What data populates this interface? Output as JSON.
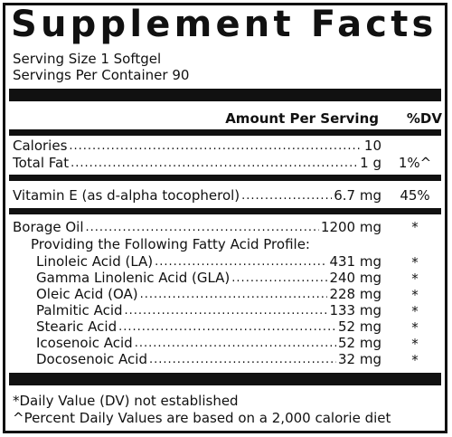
{
  "label": {
    "title": "Supplement Facts",
    "serving_size": "Serving Size 1 Softgel",
    "servings_per_container": "Servings Per Container 90",
    "amount_header": "Amount Per Serving",
    "dv_header": "%DV"
  },
  "nutrients": [
    {
      "name": "Calories",
      "amount": "10",
      "dv": ""
    },
    {
      "name": "Total Fat",
      "amount": "1 g",
      "dv": "1%^"
    },
    {
      "name": "Vitamin E (as d-alpha tocopherol)",
      "amount": "6.7 mg",
      "dv": "45%"
    },
    {
      "name": "Borage Oil",
      "amount": "1200 mg",
      "dv": "*"
    }
  ],
  "profile_heading": "Providing the Following Fatty Acid Profile:",
  "fatty_acids": [
    {
      "name": "Linoleic Acid (LA)",
      "amount": "431 mg",
      "dv": "*"
    },
    {
      "name": "Gamma Linolenic Acid (GLA)",
      "amount": "240 mg",
      "dv": "*"
    },
    {
      "name": "Oleic Acid (OA)",
      "amount": "228 mg",
      "dv": "*"
    },
    {
      "name": "Palmitic Acid",
      "amount": "133 mg",
      "dv": "*"
    },
    {
      "name": "Stearic Acid",
      "amount": "52 mg",
      "dv": "*"
    },
    {
      "name": "Icosenoic Acid",
      "amount": "52 mg",
      "dv": "*"
    },
    {
      "name": "Docosenoic Acid",
      "amount": "32 mg",
      "dv": "*"
    }
  ],
  "footnotes": {
    "dv_not_established": "*Daily Value (DV) not established",
    "percent_basis": "^Percent Daily Values are based on a 2,000 calorie diet"
  },
  "leader_char": "."
}
